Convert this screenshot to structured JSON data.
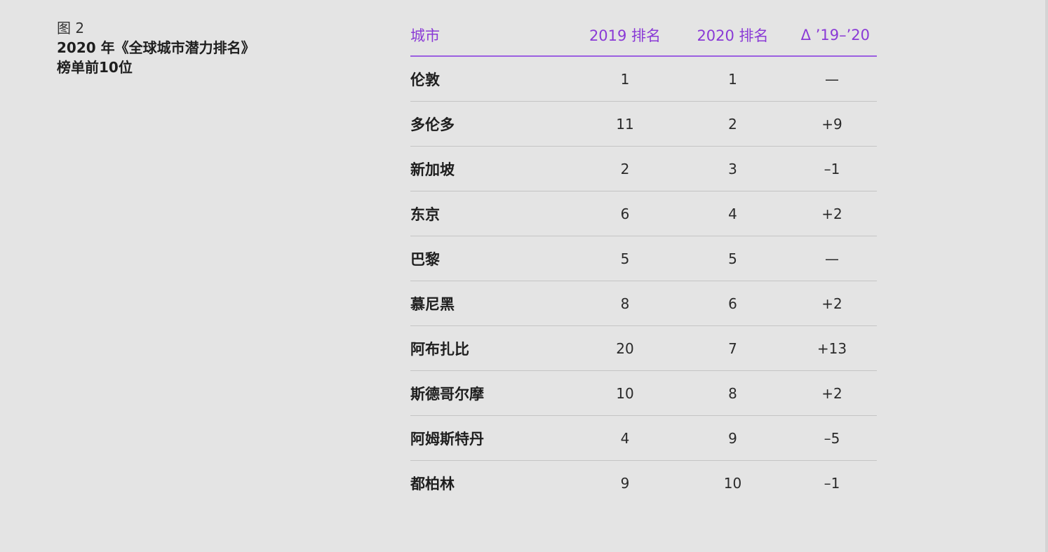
{
  "figure": {
    "label": "图 2",
    "title_line1": "2020 年《全球城市潜力排名》",
    "title_line2": "榜单前10位"
  },
  "colors": {
    "background": "#e4e4e4",
    "accent": "#8a3ad6",
    "header_rule": "#9b5fe0",
    "row_rule": "#c4c4c4"
  },
  "table": {
    "headers": [
      "城市",
      "2019 排名",
      "2020 排名",
      "Δ ’19–’20"
    ],
    "rows": [
      {
        "city": "伦敦",
        "rank_2019": "1",
        "rank_2020": "1",
        "delta": "—"
      },
      {
        "city": "多伦多",
        "rank_2019": "11",
        "rank_2020": "2",
        "delta": "+9"
      },
      {
        "city": "新加坡",
        "rank_2019": "2",
        "rank_2020": "3",
        "delta": "–1"
      },
      {
        "city": "东京",
        "rank_2019": "6",
        "rank_2020": "4",
        "delta": "+2"
      },
      {
        "city": "巴黎",
        "rank_2019": "5",
        "rank_2020": "5",
        "delta": "—"
      },
      {
        "city": "慕尼黑",
        "rank_2019": "8",
        "rank_2020": "6",
        "delta": "+2"
      },
      {
        "city": "阿布扎比",
        "rank_2019": "20",
        "rank_2020": "7",
        "delta": "+13"
      },
      {
        "city": "斯德哥尔摩",
        "rank_2019": "10",
        "rank_2020": "8",
        "delta": "+2"
      },
      {
        "city": "阿姆斯特丹",
        "rank_2019": "4",
        "rank_2020": "9",
        "delta": "–5"
      },
      {
        "city": "都柏林",
        "rank_2019": "9",
        "rank_2020": "10",
        "delta": "–1"
      }
    ]
  },
  "chart_data": {
    "type": "table",
    "title": "2020 年《全球城市潜力排名》榜单前10位",
    "subtitle": "图 2",
    "columns": [
      "城市",
      "2019 排名",
      "2020 排名",
      "Δ ’19–’20"
    ],
    "categories": [
      "伦敦",
      "多伦多",
      "新加坡",
      "东京",
      "巴黎",
      "慕尼黑",
      "阿布扎比",
      "斯德哥尔摩",
      "阿姆斯特丹",
      "都柏林"
    ],
    "series": [
      {
        "name": "2019 排名",
        "values": [
          1,
          11,
          2,
          6,
          5,
          8,
          20,
          10,
          4,
          9
        ]
      },
      {
        "name": "2020 排名",
        "values": [
          1,
          2,
          3,
          4,
          5,
          6,
          7,
          8,
          9,
          10
        ]
      },
      {
        "name": "Δ ’19–’20",
        "values": [
          0,
          9,
          -1,
          2,
          0,
          2,
          13,
          2,
          -5,
          -1
        ]
      }
    ]
  }
}
